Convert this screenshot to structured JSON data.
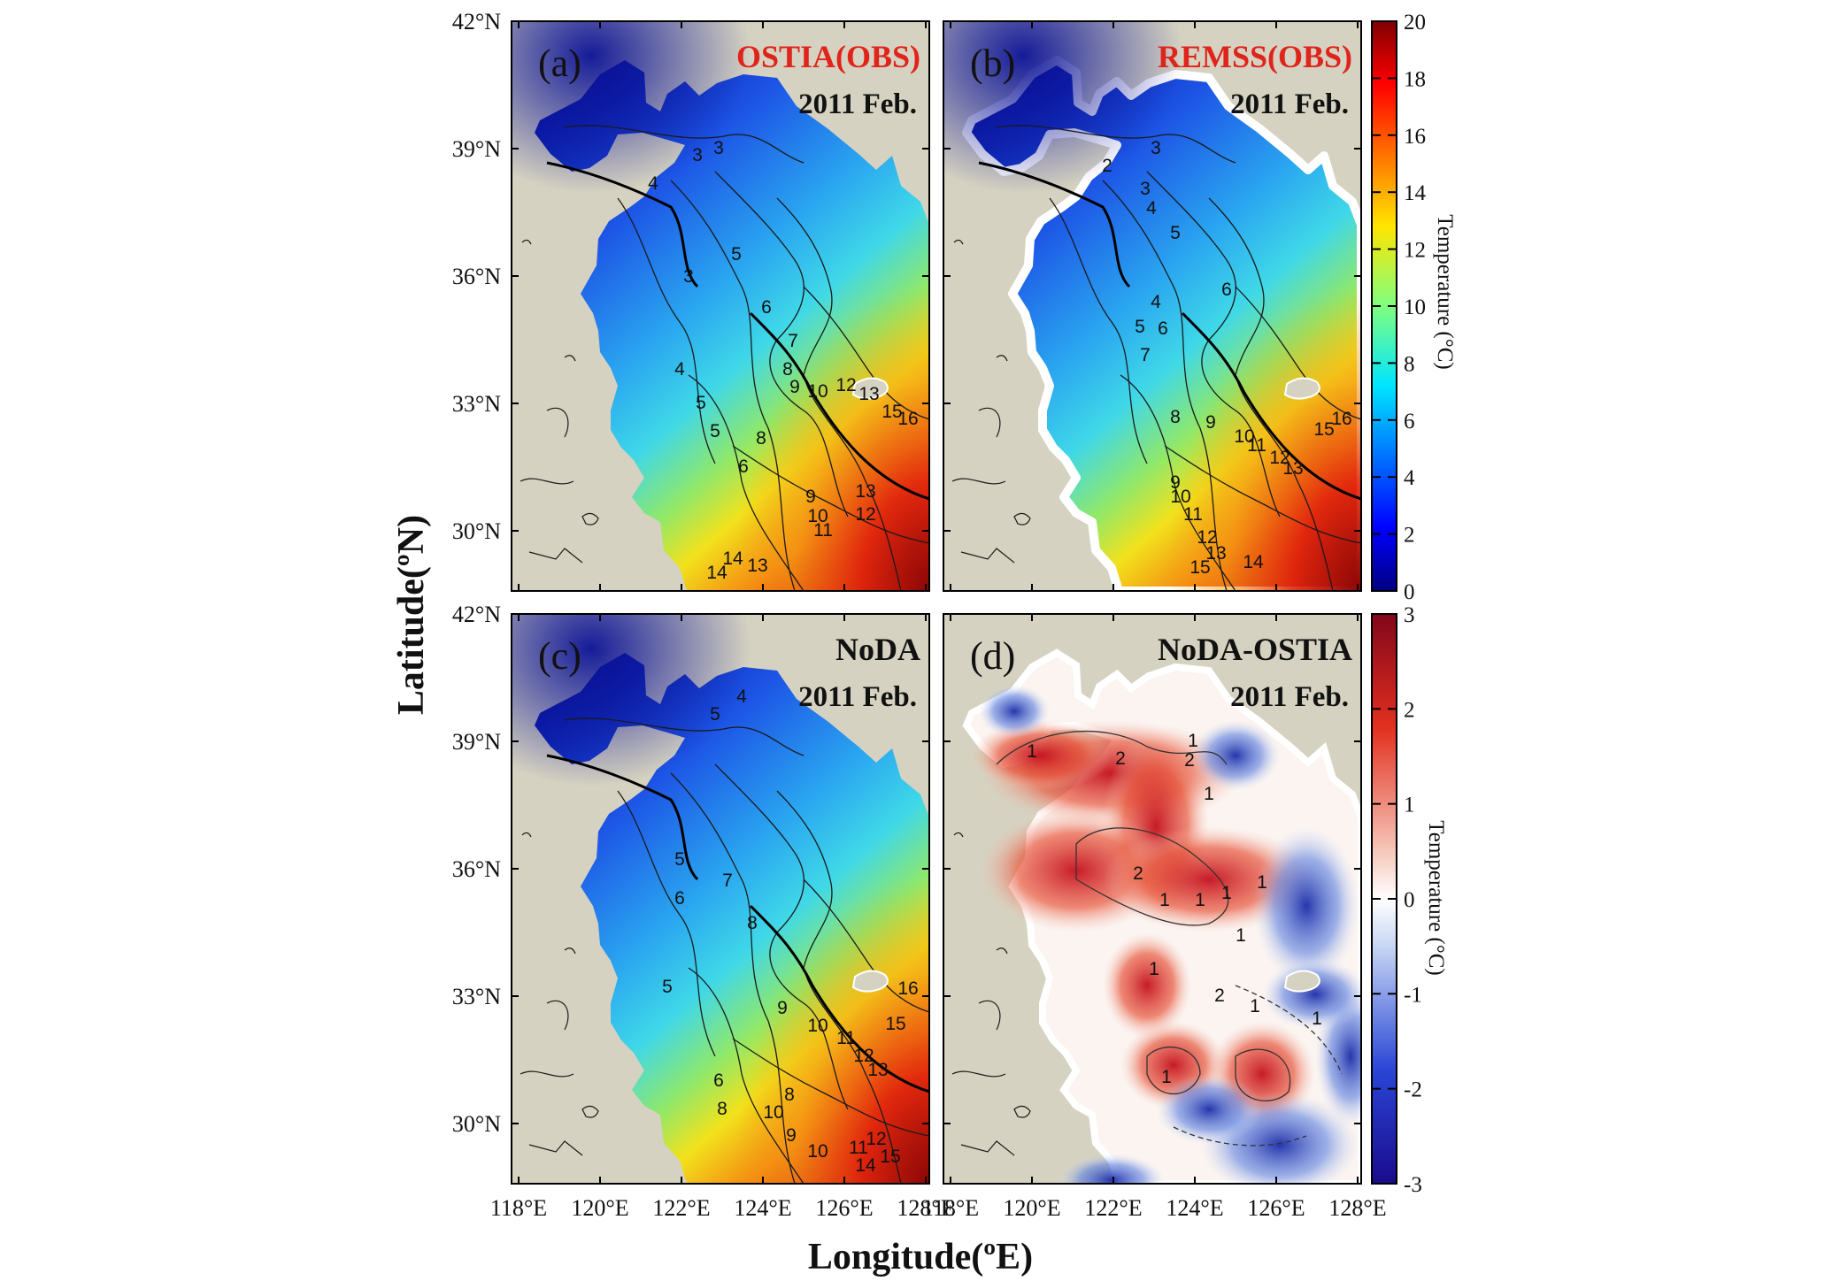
{
  "figure": {
    "xlabel": "Longitude(ºE)",
    "ylabel": "Latitude(ºN)",
    "lon_ticks": [
      "118°E",
      "120°E",
      "122°E",
      "124°E",
      "126°E",
      "128°E"
    ],
    "lat_ticks": [
      "42°N",
      "39°N",
      "36°N",
      "33°N",
      "30°N"
    ],
    "colors": {
      "land": "#d5d2c1",
      "accent_red": "#e0241b",
      "frame": "#000000"
    }
  },
  "panels": [
    {
      "letter": "(a)",
      "source": "OSTIA(OBS)",
      "source_red": true,
      "date": "2011 Feb."
    },
    {
      "letter": "(b)",
      "source": "REMSS(OBS)",
      "source_red": true,
      "date": "2011 Feb."
    },
    {
      "letter": "(c)",
      "source": "NoDA",
      "source_red": false,
      "date": "2011 Feb."
    },
    {
      "letter": "(d)",
      "source": "NoDA-OSTIA",
      "source_red": false,
      "date": "2011 Feb."
    }
  ],
  "colorbars": [
    {
      "title": "Temperature (°C)",
      "ticks": [
        "20",
        "18",
        "16",
        "14",
        "12",
        "10",
        "8",
        "6",
        "4",
        "2",
        "0"
      ],
      "colormap": "jet",
      "range": [
        0,
        20
      ]
    },
    {
      "title": "Temperature (°C)",
      "ticks": [
        "3",
        "2",
        "1",
        "0",
        "-1",
        "-2",
        "-3"
      ],
      "colormap": "blue-white-red",
      "range": [
        -3,
        3
      ]
    }
  ],
  "contour_labels": {
    "a": [
      "3",
      "3",
      "4",
      "5",
      "3",
      "6",
      "7",
      "4",
      "5",
      "8",
      "9",
      "10",
      "12",
      "13",
      "5",
      "8",
      "6",
      "9",
      "10",
      "11",
      "12",
      "13",
      "15",
      "16",
      "14",
      "13",
      "14"
    ],
    "b": [
      "3",
      "2",
      "3",
      "4",
      "5",
      "6",
      "4",
      "5",
      "6",
      "7",
      "8",
      "9",
      "10",
      "11",
      "12",
      "13",
      "15",
      "16",
      "9",
      "10",
      "11",
      "12",
      "13",
      "14",
      "15"
    ],
    "c": [
      "4",
      "5",
      "5",
      "6",
      "7",
      "8",
      "5",
      "9",
      "10",
      "11",
      "12",
      "13",
      "15",
      "16",
      "6",
      "8",
      "10",
      "8",
      "9",
      "10",
      "11",
      "12",
      "14",
      "15"
    ],
    "d": [
      "1",
      "2",
      "2",
      "1",
      "1",
      "2",
      "1",
      "1",
      "1",
      "1",
      "1",
      "1",
      "2",
      "1",
      "1",
      "1"
    ]
  }
}
